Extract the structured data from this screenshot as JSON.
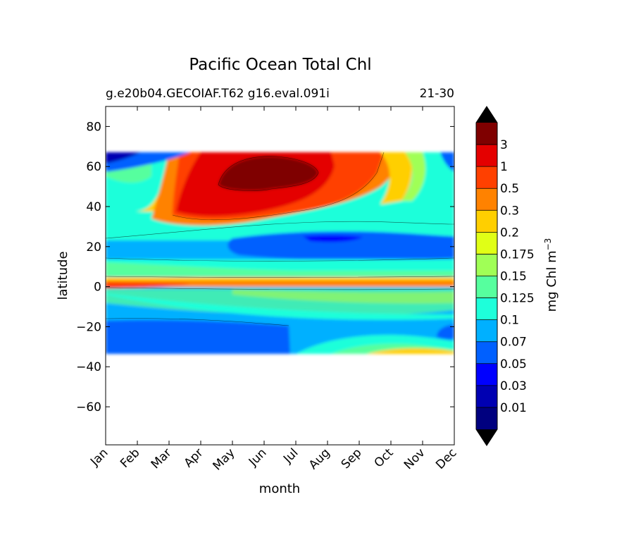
{
  "chart_data": {
    "type": "heatmap",
    "title": "Pacific Ocean Total Chl",
    "subtitle_left": "g.e20b04.GECOIAF.T62 g16.eval.091i",
    "subtitle_right": "21-30",
    "xlabel": "month",
    "ylabel": "latitude",
    "x_ticks": [
      "Jan",
      "Feb",
      "Mar",
      "Apr",
      "May",
      "Jun",
      "Jul",
      "Aug",
      "Sep",
      "Oct",
      "Nov",
      "Dec"
    ],
    "y_ticks": [
      80,
      60,
      40,
      20,
      0,
      -20,
      -40,
      -60
    ],
    "ylim": [
      -79,
      90
    ],
    "data_lat_range": [
      -34,
      67
    ],
    "colorbar": {
      "label": "mg Chl m",
      "label_superscript": "−3",
      "levels": [
        "0.01",
        "0.03",
        "0.05",
        "0.07",
        "0.1",
        "0.125",
        "0.15",
        "0.175",
        "0.2",
        "0.3",
        "0.5",
        "1",
        "3"
      ],
      "colors": [
        "#00007f",
        "#0000b2",
        "#0000ff",
        "#0060ff",
        "#00b0ff",
        "#1effda",
        "#56ff9e",
        "#a0ff56",
        "#e0ff16",
        "#ffcf00",
        "#ff8200",
        "#ff4000",
        "#e40000",
        "#7f0000"
      ],
      "extend": "both"
    }
  }
}
